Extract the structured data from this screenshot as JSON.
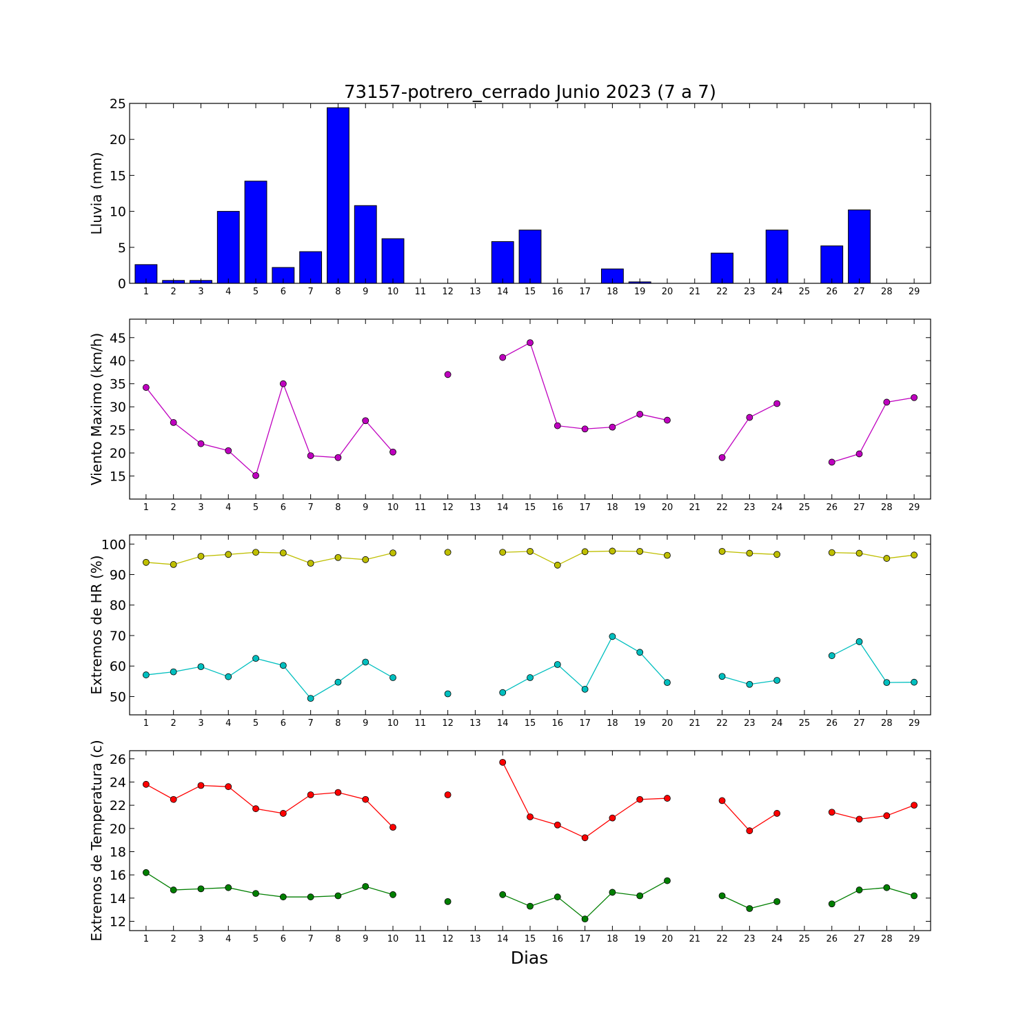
{
  "chart_data": [
    {
      "type": "bar",
      "title": "73157-potrero_cerrado Junio 2023  (7 a 7)",
      "ylabel": "Lluvia (mm)",
      "xlabel": "",
      "x": [
        1,
        2,
        3,
        4,
        5,
        6,
        7,
        8,
        9,
        10,
        11,
        12,
        13,
        14,
        15,
        16,
        17,
        18,
        19,
        20,
        21,
        22,
        23,
        24,
        25,
        26,
        27,
        28,
        29
      ],
      "ylim": [
        0,
        25
      ],
      "yticks": [
        0,
        5,
        10,
        15,
        20,
        25
      ],
      "grid": false,
      "color": "#0000ff",
      "series": [
        {
          "values": [
            2.6,
            0.4,
            0.4,
            10.0,
            14.2,
            2.2,
            4.4,
            24.4,
            10.8,
            6.2,
            0,
            0,
            0,
            5.8,
            7.4,
            0,
            0,
            2.0,
            0.2,
            0,
            0,
            4.2,
            0,
            7.4,
            0,
            5.2,
            10.2,
            0,
            0
          ]
        }
      ]
    },
    {
      "type": "line",
      "title": "",
      "ylabel": "Viento Maximo (km/h)",
      "xlabel": "",
      "x": [
        1,
        2,
        3,
        4,
        5,
        6,
        7,
        8,
        9,
        10,
        11,
        12,
        13,
        14,
        15,
        16,
        17,
        18,
        19,
        20,
        21,
        22,
        23,
        24,
        25,
        26,
        27,
        28,
        29
      ],
      "ylim": [
        10,
        49
      ],
      "yticks": [
        15,
        20,
        25,
        30,
        35,
        40,
        45
      ],
      "grid": false,
      "series": [
        {
          "color": "#bf00bf",
          "values": [
            34.2,
            26.6,
            22.0,
            20.5,
            15.1,
            35.0,
            19.4,
            19.0,
            27.0,
            20.2,
            null,
            37.0,
            null,
            40.7,
            43.9,
            25.9,
            25.2,
            25.6,
            28.4,
            27.1,
            null,
            19.0,
            27.7,
            30.7,
            null,
            18.0,
            19.8,
            31.0,
            32.0
          ]
        }
      ]
    },
    {
      "type": "line",
      "title": "",
      "ylabel": "Extremos de HR (%)",
      "xlabel": "",
      "x": [
        1,
        2,
        3,
        4,
        5,
        6,
        7,
        8,
        9,
        10,
        11,
        12,
        13,
        14,
        15,
        16,
        17,
        18,
        19,
        20,
        21,
        22,
        23,
        24,
        25,
        26,
        27,
        28,
        29
      ],
      "ylim": [
        44,
        103
      ],
      "yticks": [
        50,
        60,
        70,
        80,
        90,
        100
      ],
      "grid": false,
      "series": [
        {
          "color": "#bfbf00",
          "values": [
            94.0,
            93.3,
            96.0,
            96.6,
            97.3,
            97.1,
            93.7,
            95.6,
            94.9,
            97.1,
            null,
            97.3,
            null,
            97.3,
            97.6,
            93.1,
            97.5,
            97.7,
            97.6,
            96.3,
            null,
            97.6,
            97.0,
            96.6,
            null,
            97.2,
            97.0,
            95.3,
            96.4
          ]
        },
        {
          "color": "#00bfbf",
          "values": [
            57.1,
            58.1,
            59.8,
            56.5,
            62.5,
            60.2,
            49.4,
            54.7,
            61.3,
            56.2,
            null,
            50.9,
            null,
            51.3,
            56.2,
            60.5,
            52.4,
            69.7,
            64.5,
            54.6,
            null,
            56.6,
            54.0,
            55.3,
            null,
            63.4,
            68.0,
            54.6,
            54.7
          ]
        }
      ]
    },
    {
      "type": "line",
      "title": "",
      "ylabel": "Extremos de Temperatura (c)",
      "xlabel": "Dias",
      "x": [
        1,
        2,
        3,
        4,
        5,
        6,
        7,
        8,
        9,
        10,
        11,
        12,
        13,
        14,
        15,
        16,
        17,
        18,
        19,
        20,
        21,
        22,
        23,
        24,
        25,
        26,
        27,
        28,
        29
      ],
      "ylim": [
        11.2,
        26.7
      ],
      "yticks": [
        12,
        14,
        16,
        18,
        20,
        22,
        24,
        26
      ],
      "grid": false,
      "series": [
        {
          "color": "#ff0000",
          "values": [
            23.8,
            22.5,
            23.7,
            23.6,
            21.7,
            21.3,
            22.9,
            23.1,
            22.5,
            20.1,
            null,
            22.9,
            null,
            25.7,
            21.0,
            20.3,
            19.2,
            20.9,
            22.5,
            22.6,
            null,
            22.4,
            19.8,
            21.3,
            null,
            21.4,
            20.8,
            21.1,
            22.0
          ]
        },
        {
          "color": "#007f00",
          "values": [
            16.2,
            14.7,
            14.8,
            14.9,
            14.4,
            14.1,
            14.1,
            14.2,
            15.0,
            14.3,
            null,
            13.7,
            null,
            14.3,
            13.3,
            14.1,
            12.2,
            14.5,
            14.2,
            15.5,
            null,
            14.2,
            13.1,
            13.7,
            null,
            13.5,
            14.7,
            14.9,
            14.2
          ]
        }
      ]
    }
  ]
}
